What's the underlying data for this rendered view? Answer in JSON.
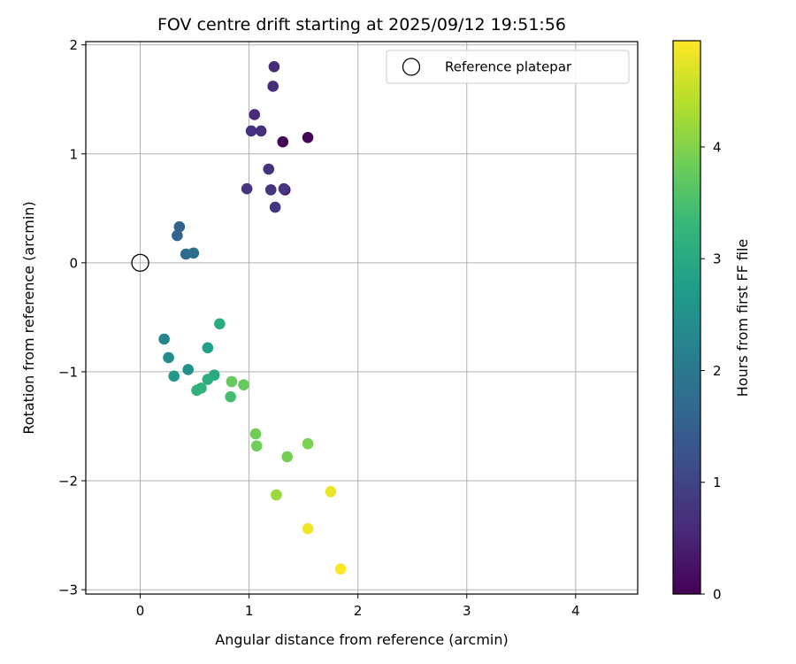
{
  "chart_data": {
    "type": "scatter",
    "title": "FOV centre drift starting at 2025/09/12 19:51:56",
    "xlabel": "Angular distance from reference (arcmin)",
    "ylabel": "Rotation from reference (arcmin)",
    "xlim": [
      -0.5,
      4.57
    ],
    "ylim": [
      -3.04,
      2.03
    ],
    "xticks": [
      0,
      1,
      2,
      3,
      4
    ],
    "xtick_labels": [
      "0",
      "1",
      "2",
      "3",
      "4"
    ],
    "yticks": [
      -3,
      -2,
      -1,
      0,
      1,
      2
    ],
    "ytick_labels": [
      "−3",
      "−2",
      "−1",
      "0",
      "1",
      "2"
    ],
    "grid": true,
    "legend": {
      "position": "top-right",
      "label": "Reference platepar"
    },
    "reference_point": {
      "x": 0,
      "y": 0
    },
    "colorbar": {
      "label": "Hours from first FF file",
      "colormap": "viridis",
      "range": [
        0,
        4.95
      ],
      "ticks": [
        0,
        1,
        2,
        3,
        4
      ],
      "tick_labels": [
        "0",
        "1",
        "2",
        "3",
        "4"
      ]
    },
    "points": [
      {
        "x": 1.31,
        "y": 1.11,
        "hours": 0.02
      },
      {
        "x": 1.54,
        "y": 1.15,
        "hours": 0.05
      },
      {
        "x": 1.33,
        "y": 0.67,
        "hours": 0.1
      },
      {
        "x": 1.05,
        "y": 1.36,
        "hours": 0.6
      },
      {
        "x": 1.23,
        "y": 1.8,
        "hours": 0.62
      },
      {
        "x": 1.22,
        "y": 1.62,
        "hours": 0.65
      },
      {
        "x": 1.02,
        "y": 1.21,
        "hours": 0.7
      },
      {
        "x": 1.11,
        "y": 1.21,
        "hours": 0.68
      },
      {
        "x": 1.18,
        "y": 0.86,
        "hours": 0.72
      },
      {
        "x": 0.98,
        "y": 0.68,
        "hours": 0.74
      },
      {
        "x": 1.2,
        "y": 0.67,
        "hours": 0.76
      },
      {
        "x": 1.32,
        "y": 0.68,
        "hours": 0.78
      },
      {
        "x": 1.24,
        "y": 0.51,
        "hours": 0.8
      },
      {
        "x": 0.36,
        "y": 0.33,
        "hours": 1.55
      },
      {
        "x": 0.34,
        "y": 0.25,
        "hours": 1.6
      },
      {
        "x": 0.42,
        "y": 0.08,
        "hours": 1.7
      },
      {
        "x": 0.49,
        "y": 0.09,
        "hours": 1.75
      },
      {
        "x": 0.22,
        "y": -0.7,
        "hours": 2.3
      },
      {
        "x": 0.26,
        "y": -0.87,
        "hours": 2.4
      },
      {
        "x": 0.44,
        "y": -0.98,
        "hours": 2.5
      },
      {
        "x": 0.31,
        "y": -1.04,
        "hours": 2.65
      },
      {
        "x": 0.62,
        "y": -0.78,
        "hours": 2.8
      },
      {
        "x": 0.73,
        "y": -0.56,
        "hours": 3.05
      },
      {
        "x": 0.68,
        "y": -1.03,
        "hours": 3.0
      },
      {
        "x": 0.62,
        "y": -1.07,
        "hours": 3.1
      },
      {
        "x": 0.52,
        "y": -1.17,
        "hours": 3.15
      },
      {
        "x": 0.56,
        "y": -1.15,
        "hours": 3.2
      },
      {
        "x": 0.83,
        "y": -1.23,
        "hours": 3.45
      },
      {
        "x": 0.84,
        "y": -1.09,
        "hours": 3.75
      },
      {
        "x": 0.95,
        "y": -1.12,
        "hours": 3.75
      },
      {
        "x": 1.06,
        "y": -1.57,
        "hours": 3.85
      },
      {
        "x": 1.07,
        "y": -1.68,
        "hours": 3.85
      },
      {
        "x": 1.35,
        "y": -1.78,
        "hours": 3.9
      },
      {
        "x": 1.54,
        "y": -1.66,
        "hours": 3.95
      },
      {
        "x": 1.25,
        "y": -2.13,
        "hours": 4.2
      },
      {
        "x": 1.75,
        "y": -2.1,
        "hours": 4.8
      },
      {
        "x": 1.54,
        "y": -2.44,
        "hours": 4.85
      },
      {
        "x": 1.84,
        "y": -2.81,
        "hours": 4.95
      }
    ]
  }
}
